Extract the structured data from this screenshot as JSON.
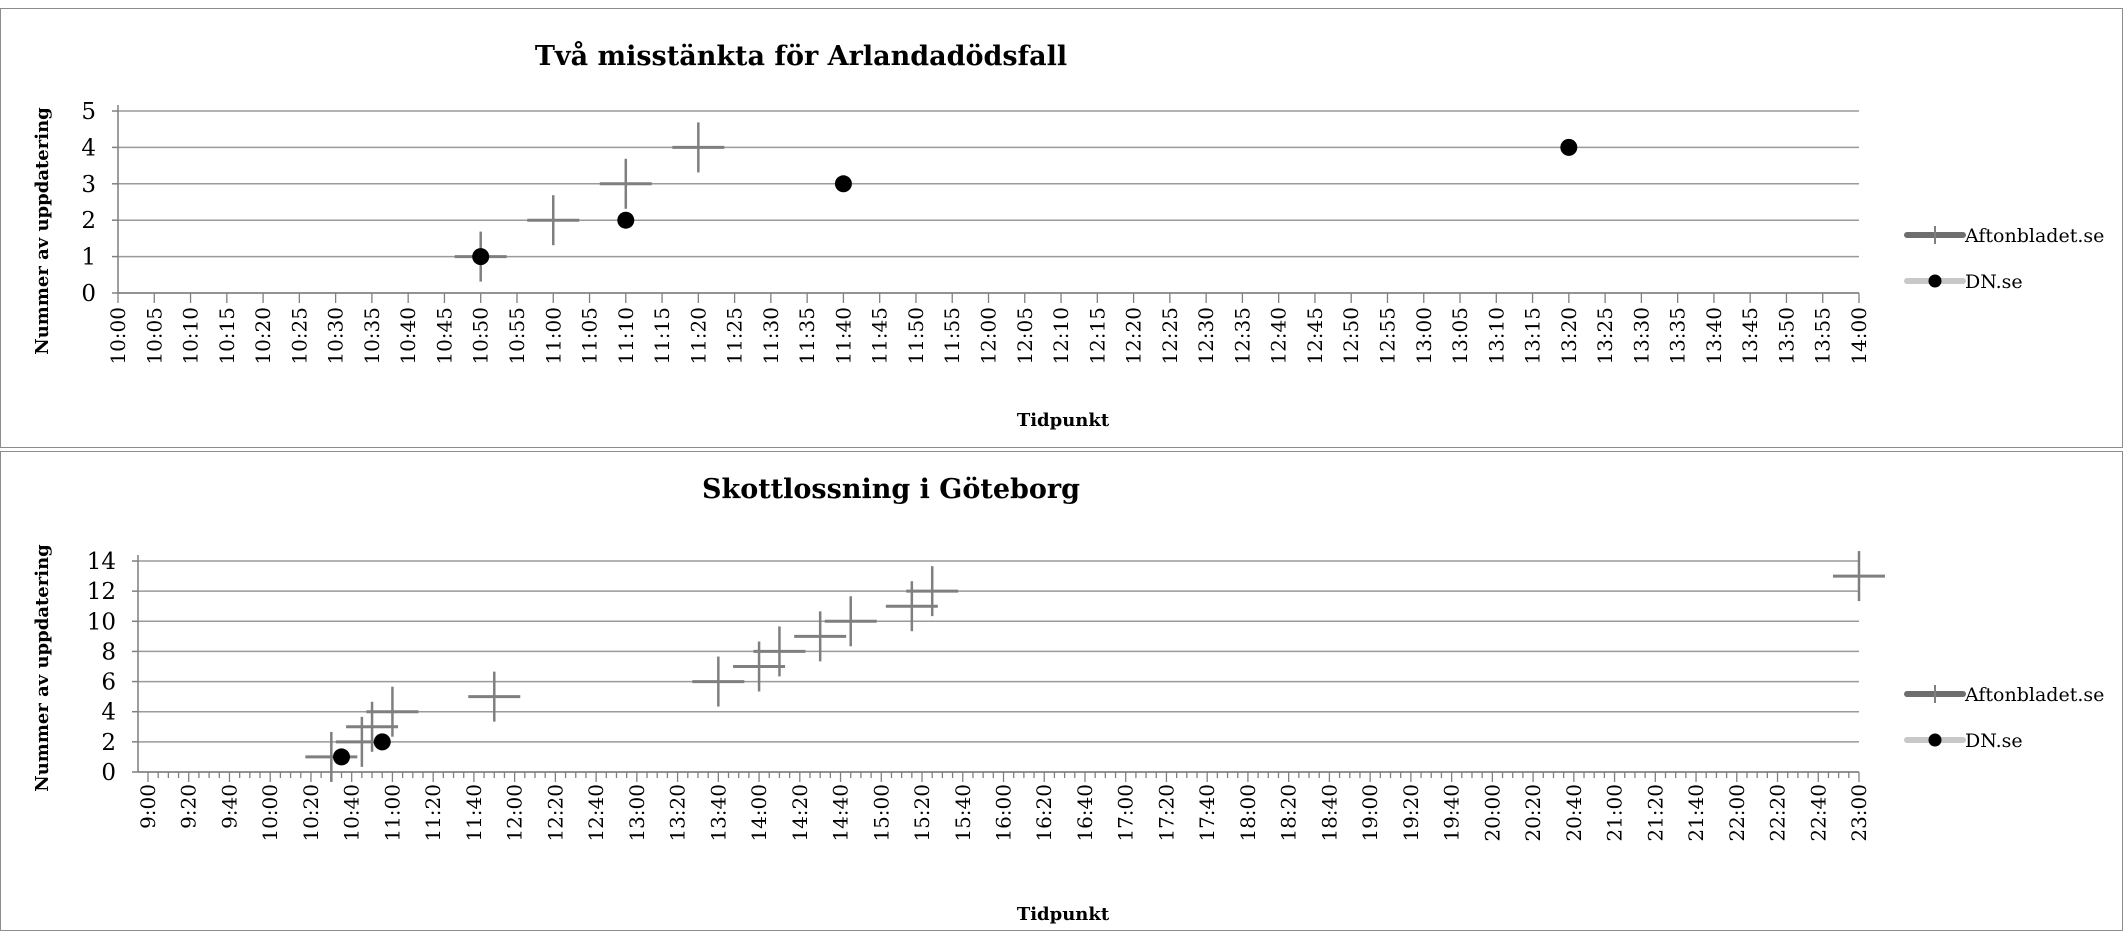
{
  "chart_data": [
    {
      "type": "scatter",
      "title": "Två misstänkta för Arlandadödsfall",
      "xlabel": "Tidpunkt",
      "ylabel": "Nummer av uppdatering",
      "xlim": [
        "10:00",
        "14:00"
      ],
      "ylim": [
        0,
        5
      ],
      "x_ticks": [
        "10:00",
        "10:05",
        "10:10",
        "10:15",
        "10:20",
        "10:25",
        "10:30",
        "10:35",
        "10:40",
        "10:45",
        "10:50",
        "10:55",
        "11:00",
        "11:05",
        "11:10",
        "11:15",
        "11:20",
        "11:25",
        "11:30",
        "11:35",
        "11:40",
        "11:45",
        "11:50",
        "11:55",
        "12:00",
        "12:05",
        "12:10",
        "12:15",
        "12:20",
        "12:25",
        "12:30",
        "12:35",
        "12:40",
        "12:45",
        "12:50",
        "12:55",
        "13:00",
        "13:05",
        "13:10",
        "13:15",
        "13:20",
        "13:25",
        "13:30",
        "13:35",
        "13:40",
        "13:45",
        "13:50",
        "13:55",
        "14:00"
      ],
      "y_ticks": [
        "0",
        "1",
        "2",
        "3",
        "4",
        "5"
      ],
      "grid": true,
      "legend_position": "right",
      "series": [
        {
          "name": "Aftonbladet.se",
          "marker": "plus",
          "color": "#7f7f7f",
          "points": [
            {
              "x": "10:50",
              "y": 1
            },
            {
              "x": "11:00",
              "y": 2
            },
            {
              "x": "11:10",
              "y": 3
            },
            {
              "x": "11:20",
              "y": 4
            }
          ]
        },
        {
          "name": "DN.se",
          "marker": "circle",
          "color": "#000000",
          "points": [
            {
              "x": "10:50",
              "y": 1
            },
            {
              "x": "11:10",
              "y": 2
            },
            {
              "x": "11:40",
              "y": 3
            },
            {
              "x": "13:20",
              "y": 4
            }
          ]
        }
      ]
    },
    {
      "type": "scatter",
      "title": "Skottlossning i Göteborg",
      "xlabel": "Tidpunkt",
      "ylabel": "Nummer av uppdatering",
      "xlim": [
        "9:00",
        "23:00"
      ],
      "ylim": [
        0,
        14
      ],
      "x_ticks": [
        "9:00",
        "9:20",
        "9:40",
        "10:00",
        "10:20",
        "10:40",
        "11:00",
        "11:20",
        "11:40",
        "12:00",
        "12:20",
        "12:40",
        "13:00",
        "13:20",
        "13:40",
        "14:00",
        "14:20",
        "14:40",
        "15:00",
        "15:20",
        "15:40",
        "16:00",
        "16:20",
        "16:40",
        "17:00",
        "17:20",
        "17:40",
        "18:00",
        "18:20",
        "18:40",
        "19:00",
        "19:20",
        "19:40",
        "20:00",
        "20:20",
        "20:40",
        "21:00",
        "21:20",
        "21:40",
        "22:00",
        "22:20",
        "22:40",
        "23:00"
      ],
      "y_ticks": [
        "0",
        "2",
        "4",
        "6",
        "8",
        "10",
        "12",
        "14"
      ],
      "grid": true,
      "legend_position": "right",
      "series": [
        {
          "name": "Aftonbladet.se",
          "marker": "plus",
          "color": "#7f7f7f",
          "points": [
            {
              "x": "10:30",
              "y": 1
            },
            {
              "x": "10:45",
              "y": 2
            },
            {
              "x": "10:50",
              "y": 3
            },
            {
              "x": "11:00",
              "y": 4
            },
            {
              "x": "11:50",
              "y": 5
            },
            {
              "x": "13:40",
              "y": 6
            },
            {
              "x": "14:00",
              "y": 7
            },
            {
              "x": "14:10",
              "y": 8
            },
            {
              "x": "14:30",
              "y": 9
            },
            {
              "x": "14:45",
              "y": 10
            },
            {
              "x": "15:15",
              "y": 11
            },
            {
              "x": "15:25",
              "y": 12
            },
            {
              "x": "23:00",
              "y": 13
            }
          ]
        },
        {
          "name": "DN.se",
          "marker": "circle",
          "color": "#000000",
          "points": [
            {
              "x": "10:35",
              "y": 1
            },
            {
              "x": "10:55",
              "y": 2
            }
          ]
        }
      ]
    }
  ]
}
